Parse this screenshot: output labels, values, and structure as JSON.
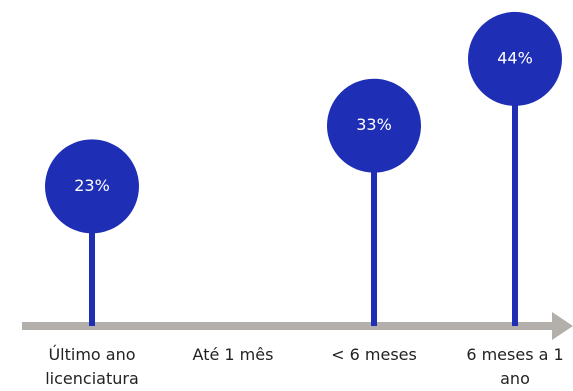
{
  "chart_data": {
    "type": "lollipop",
    "categories": [
      "Último ano licenciatura",
      "Até 1 mês",
      "< 6 meses",
      "6 meses a 1 ano"
    ],
    "values": [
      23,
      null,
      33,
      44
    ],
    "value_labels": [
      "23%",
      null,
      "33%",
      "44%"
    ],
    "color": "#1f2fb5",
    "axis_color": "#b3afab"
  }
}
